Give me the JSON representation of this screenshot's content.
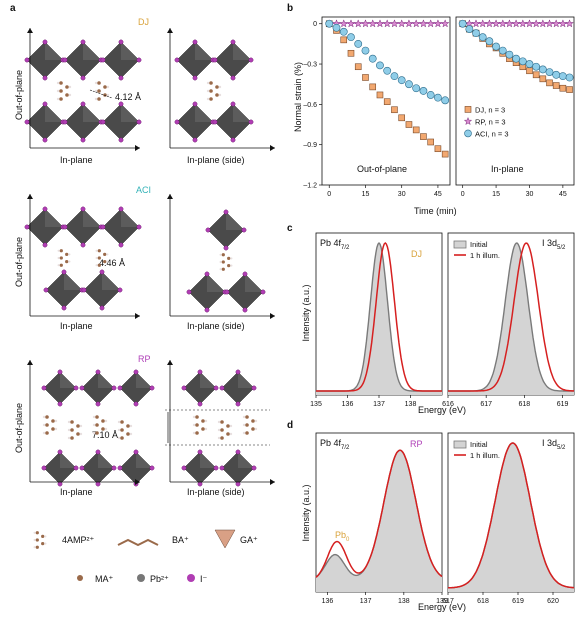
{
  "panels": {
    "a": {
      "letter": "a",
      "sections": [
        {
          "title": "DJ",
          "title_color": "#d9a23a",
          "distance": "4.12 Å",
          "left_caption": "In-plane",
          "right_caption": "In-plane (side)",
          "axis_label": "Out-of-plane"
        },
        {
          "title": "ACI",
          "title_color": "#33b3b8",
          "distance": "4.46 Å",
          "left_caption": "In-plane",
          "right_caption": "In-plane (side)",
          "axis_label": "Out-of-plane"
        },
        {
          "title": "RP",
          "title_color": "#b040b8",
          "distance": "7.10 Å",
          "left_caption": "In-plane",
          "right_caption": "In-plane (side)",
          "axis_label": "Out-of-plane"
        }
      ],
      "legend": [
        "4AMP²⁺",
        "BA⁺",
        "GA⁺",
        "MA⁺",
        "Pb²⁺",
        "I⁻"
      ]
    },
    "b": {
      "letter": "b",
      "left_caption": "Out-of-plane",
      "right_caption": "In-plane",
      "xlabel": "Time (min)",
      "ylabel": "Normal strain (%)"
    },
    "c": {
      "letter": "c",
      "left_label": "Pb 4f",
      "left_label_sub": "7/2",
      "right_label": "I 3d",
      "right_label_sub": "5/2",
      "tag": "DJ",
      "tag_color": "#d9a23a",
      "xlabel": "Energy (eV)",
      "ylabel": "Intensity (a.u.)"
    },
    "d": {
      "letter": "d",
      "left_label": "Pb 4f",
      "left_label_sub": "7/2",
      "right_label": "I 3d",
      "right_label_sub": "5/2",
      "tag": "RP",
      "tag_color": "#b040b8",
      "pb0": "Pb",
      "pb0_sub": "0",
      "xlabel": "Energy (eV)",
      "ylabel": "Intensity (a.u.)"
    }
  },
  "chart_data": [
    {
      "type": "scatter",
      "panel": "b-left",
      "xlabel": "Time (min)",
      "ylabel": "Normal strain (%)",
      "xlim": [
        -3,
        50
      ],
      "ylim": [
        -1.2,
        0.05
      ],
      "xticks": [
        0,
        15,
        30,
        45
      ],
      "yticks": [
        0,
        -0.3,
        -0.6,
        -0.9,
        -1.2
      ],
      "ytick_labels": [
        "0",
        "–0.3",
        "–0.6",
        "–0.9",
        "–1.2"
      ],
      "x": [
        0,
        3,
        6,
        9,
        12,
        15,
        18,
        21,
        24,
        27,
        30,
        33,
        36,
        39,
        42,
        45,
        48
      ],
      "series": [
        {
          "name": "DJ, n = 3",
          "color": "#f2a870",
          "values": [
            0,
            -0.05,
            -0.12,
            -0.22,
            -0.32,
            -0.4,
            -0.47,
            -0.53,
            -0.58,
            -0.64,
            -0.7,
            -0.75,
            -0.79,
            -0.84,
            -0.88,
            -0.93,
            -0.97
          ]
        },
        {
          "name": "RP, n = 3",
          "color": "#d98ad0",
          "values": [
            0,
            0,
            0,
            0,
            0,
            0,
            0,
            0,
            0,
            0,
            0,
            0,
            0,
            0,
            0,
            0,
            0
          ]
        },
        {
          "name": "ACI, n = 3",
          "color": "#8fcde8",
          "values": [
            0,
            -0.03,
            -0.06,
            -0.1,
            -0.15,
            -0.2,
            -0.26,
            -0.31,
            -0.35,
            -0.39,
            -0.42,
            -0.45,
            -0.48,
            -0.5,
            -0.53,
            -0.55,
            -0.57
          ]
        }
      ]
    },
    {
      "type": "scatter",
      "panel": "b-right",
      "xlabel": "Time (min)",
      "xlim": [
        -3,
        50
      ],
      "ylim": [
        -1.2,
        0.05
      ],
      "xticks": [
        0,
        15,
        30,
        45
      ],
      "x": [
        0,
        3,
        6,
        9,
        12,
        15,
        18,
        21,
        24,
        27,
        30,
        33,
        36,
        39,
        42,
        45,
        48
      ],
      "legend": [
        "DJ, n = 3",
        "RP, n = 3",
        "ACI, n = 3"
      ],
      "series": [
        {
          "name": "DJ, n = 3",
          "color": "#f2a870",
          "values": [
            0,
            -0.04,
            -0.07,
            -0.11,
            -0.15,
            -0.18,
            -0.22,
            -0.26,
            -0.29,
            -0.32,
            -0.35,
            -0.38,
            -0.41,
            -0.44,
            -0.46,
            -0.48,
            -0.49
          ]
        },
        {
          "name": "RP, n = 3",
          "color": "#d98ad0",
          "values": [
            0,
            0,
            0,
            0,
            0,
            0,
            0,
            0,
            0,
            0,
            0,
            0,
            0,
            0,
            0,
            0,
            0
          ]
        },
        {
          "name": "ACI, n = 3",
          "color": "#8fcde8",
          "values": [
            0,
            -0.04,
            -0.07,
            -0.1,
            -0.13,
            -0.17,
            -0.2,
            -0.23,
            -0.26,
            -0.28,
            -0.3,
            -0.32,
            -0.34,
            -0.36,
            -0.38,
            -0.39,
            -0.4
          ]
        }
      ]
    },
    {
      "type": "area",
      "panel": "c-left",
      "xlim": [
        135,
        139
      ],
      "xticks": [
        135,
        136,
        137,
        138
      ],
      "xlabel": "Energy (eV)",
      "ylabel": "Intensity (a.u.)",
      "series": [
        {
          "name": "Initial",
          "center": 137.0,
          "width": 0.27,
          "color": "#7a7a7a"
        },
        {
          "name": "1 h illum.",
          "center": 137.2,
          "width": 0.29,
          "color": "#d62020"
        }
      ]
    },
    {
      "type": "area",
      "panel": "c-right",
      "xlim": [
        616,
        619.3
      ],
      "xticks": [
        616,
        617,
        618,
        619
      ],
      "legend": [
        "Initial",
        "1 h illum."
      ],
      "series": [
        {
          "name": "Initial",
          "center": 617.8,
          "width": 0.3,
          "color": "#7a7a7a"
        },
        {
          "name": "1 h illum.",
          "center": 618.05,
          "width": 0.32,
          "color": "#d62020"
        }
      ]
    },
    {
      "type": "area",
      "panel": "d-left",
      "xlim": [
        135.7,
        139
      ],
      "xticks": [
        136,
        137,
        138,
        139
      ],
      "xlabel": "Energy (eV)",
      "ylabel": "Intensity (a.u.)",
      "series": [
        {
          "name": "Initial",
          "center": 137.9,
          "width": 0.42,
          "minor_center": 136.2,
          "minor_height": 0.18,
          "color": "#7a7a7a"
        },
        {
          "name": "1 h illum.",
          "center": 137.9,
          "width": 0.42,
          "minor_center": 136.25,
          "minor_height": 0.27,
          "color": "#d62020"
        }
      ]
    },
    {
      "type": "area",
      "panel": "d-right",
      "xlim": [
        617,
        620.6
      ],
      "xticks": [
        617,
        618,
        619,
        620
      ],
      "legend": [
        "Initial",
        "1 h illum."
      ],
      "series": [
        {
          "name": "Initial",
          "center": 618.85,
          "width": 0.5,
          "color": "#7a7a7a"
        },
        {
          "name": "1 h illum.",
          "center": 618.85,
          "width": 0.5,
          "color": "#d62020"
        }
      ]
    }
  ]
}
